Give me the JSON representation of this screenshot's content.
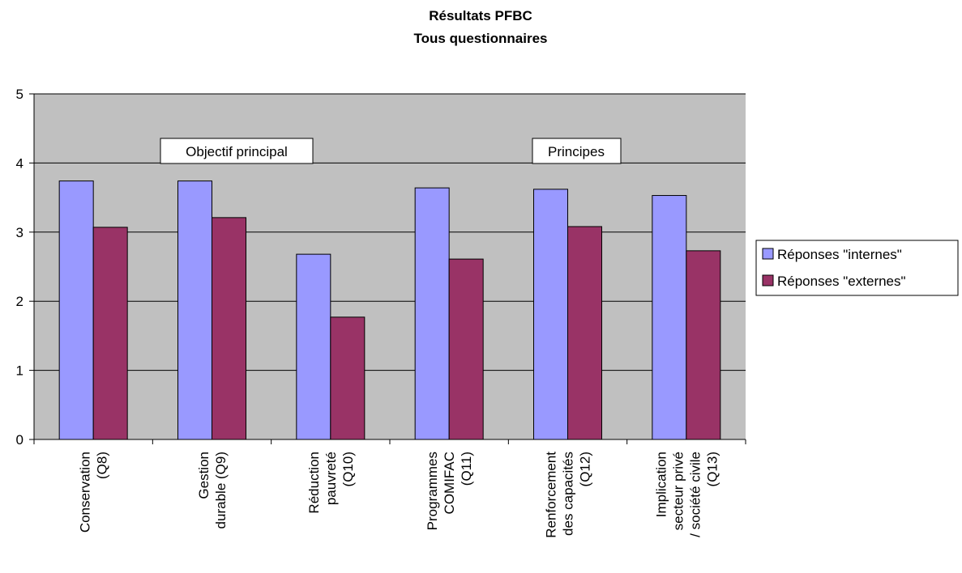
{
  "chart_data": {
    "type": "bar",
    "title_lines": [
      "Résultats PFBC",
      "Tous questionnaires"
    ],
    "categories": [
      [
        "Conservation",
        "(Q8)"
      ],
      [
        "Gestion",
        "durable (Q9)"
      ],
      [
        "Réduction",
        "pauvreté",
        "(Q10)"
      ],
      [
        "Programmes",
        "COMIFAC",
        "(Q11)"
      ],
      [
        "Renforcement",
        "des capacités",
        "(Q12)"
      ],
      [
        "Implication",
        "secteur privé",
        "/ société civile",
        "(Q13)"
      ]
    ],
    "series": [
      {
        "name": "Réponses \"internes\"",
        "color": "#9999ff",
        "values": [
          3.74,
          3.74,
          2.68,
          3.64,
          3.62,
          3.53
        ]
      },
      {
        "name": "Réponses \"externes\"",
        "color": "#993366",
        "values": [
          3.07,
          3.21,
          1.77,
          2.61,
          3.08,
          2.73
        ]
      }
    ],
    "ylim": [
      0,
      5
    ],
    "yticks": [
      0,
      1,
      2,
      3,
      4,
      5
    ],
    "grid": true,
    "plot_background": "#c0c0c0",
    "legend_position": "right",
    "annotations": [
      "Objectif principal",
      "Principes"
    ]
  }
}
